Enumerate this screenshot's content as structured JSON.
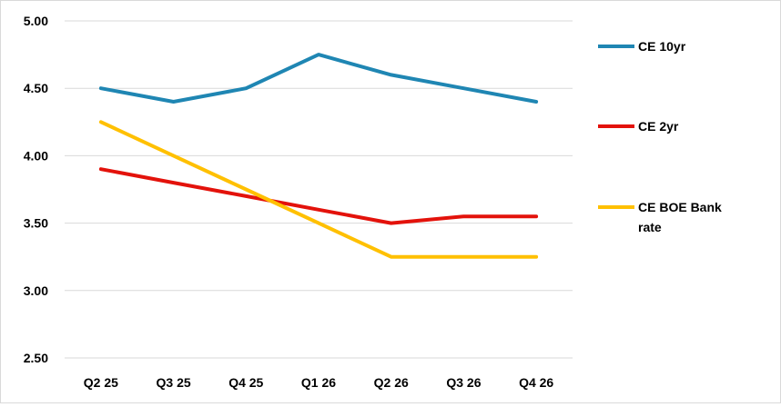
{
  "chart_data": {
    "type": "line",
    "categories": [
      "Q2 25",
      "Q3 25",
      "Q4 25",
      "Q1 26",
      "Q2 26",
      "Q3 26",
      "Q4 26"
    ],
    "ylim": [
      2.5,
      5.0
    ],
    "yticks": [
      "2.50",
      "3.00",
      "3.50",
      "4.00",
      "4.50",
      "5.00"
    ],
    "grid": true,
    "legend_position": "right",
    "series": [
      {
        "name": "CE 10yr",
        "color": "#1f86b3",
        "values": [
          4.5,
          4.4,
          4.5,
          4.75,
          4.6,
          4.5,
          4.4
        ]
      },
      {
        "name": "CE 2yr",
        "color": "#e3120b",
        "values": [
          3.9,
          3.8,
          3.7,
          3.6,
          3.5,
          3.55,
          3.55
        ]
      },
      {
        "name": "CE BOE Bank rate",
        "color": "#ffc000",
        "values": [
          4.25,
          4.0,
          3.75,
          3.5,
          3.25,
          3.25,
          3.25
        ]
      }
    ]
  },
  "legend": {
    "items": [
      {
        "label": "CE 10yr"
      },
      {
        "label": "CE 2yr"
      },
      {
        "label_line1": "CE BOE Bank",
        "label_line2": "rate"
      }
    ]
  }
}
